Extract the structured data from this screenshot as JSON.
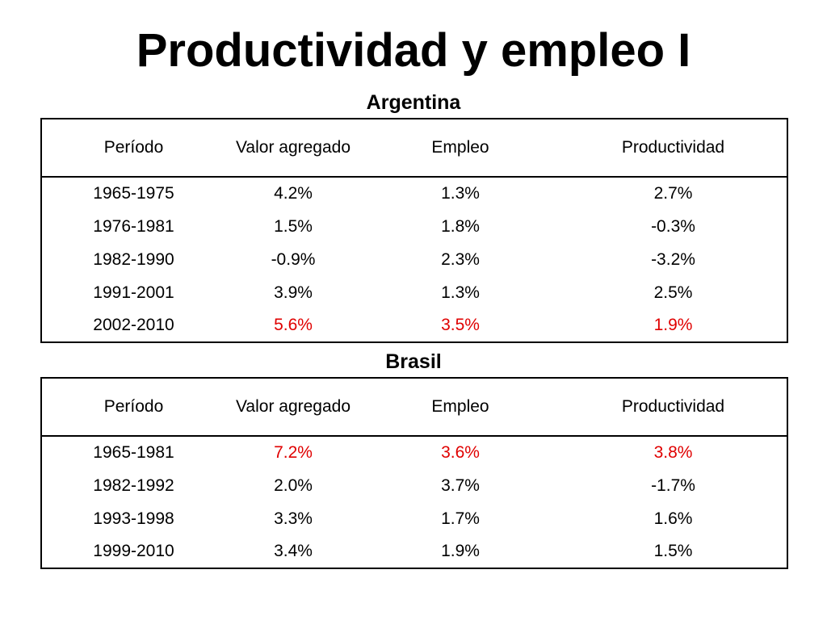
{
  "title": "Productividad y empleo I",
  "colors": {
    "highlight": "#e00000"
  },
  "argentina": {
    "heading": "Argentina",
    "columns": [
      "Período",
      "Valor agregado",
      "Empleo",
      "Productividad"
    ],
    "rows": [
      {
        "periodo": "1965-1975",
        "valor": "4.2%",
        "empleo": "1.3%",
        "productividad": "2.7%",
        "highlight": false
      },
      {
        "periodo": "1976-1981",
        "valor": "1.5%",
        "empleo": "1.8%",
        "productividad": "-0.3%",
        "highlight": false
      },
      {
        "periodo": "1982-1990",
        "valor": "-0.9%",
        "empleo": "2.3%",
        "productividad": "-3.2%",
        "highlight": false
      },
      {
        "periodo": "1991-2001",
        "valor": "3.9%",
        "empleo": "1.3%",
        "productividad": "2.5%",
        "highlight": false
      },
      {
        "periodo": "2002-2010",
        "valor": "5.6%",
        "empleo": "3.5%",
        "productividad": "1.9%",
        "highlight": true
      }
    ]
  },
  "brasil": {
    "heading": "Brasil",
    "columns": [
      "Período",
      "Valor agregado",
      "Empleo",
      "Productividad"
    ],
    "rows": [
      {
        "periodo": "1965-1981",
        "valor": "7.2%",
        "empleo": "3.6%",
        "productividad": "3.8%",
        "highlight": true
      },
      {
        "periodo": "1982-1992",
        "valor": "2.0%",
        "empleo": "3.7%",
        "productividad": "-1.7%",
        "highlight": false
      },
      {
        "periodo": "1993-1998",
        "valor": "3.3%",
        "empleo": "1.7%",
        "productividad": "1.6%",
        "highlight": false
      },
      {
        "periodo": "1999-2010",
        "valor": "3.4%",
        "empleo": "1.9%",
        "productividad": "1.5%",
        "highlight": false
      }
    ]
  }
}
